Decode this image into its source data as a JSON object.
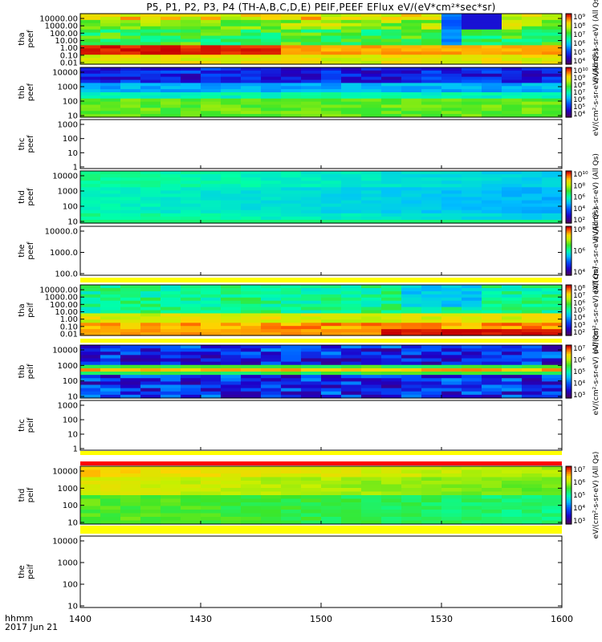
{
  "chart_data": {
    "type": "heatmap",
    "title": "P5, P1, P2, P3, P4 (TH-A,B,C,D,E) PEIF,PEEF EFlux eV/(eV*cm²*sec*sr)",
    "x_axis": {
      "label_lines": [
        "hhmm",
        "2017 Jun 21"
      ],
      "ticks": [
        "1400",
        "1430",
        "1500",
        "1530",
        "1600"
      ],
      "range": [
        "14:00",
        "16:00"
      ]
    },
    "panels": [
      {
        "id": "tha-peef",
        "ylabel": [
          "tha",
          "peef"
        ],
        "yticks": [
          "10000.00",
          "1000.00",
          "100.00",
          "10.00",
          "1.00",
          "0.10",
          "0.01"
        ],
        "ylog": true,
        "has_data": true,
        "pattern": "tha_peef",
        "colorbar": {
          "ticks": [
            "10⁹",
            "10⁸",
            "10⁷",
            "10⁶",
            "10⁵",
            "10⁴"
          ],
          "zlabel": "eV/(cm²-s-sr-eV) (All Qs)"
        }
      },
      {
        "id": "thb-peef",
        "ylabel": [
          "thb",
          "peef"
        ],
        "yticks": [
          "10000",
          "1000",
          "100",
          "10"
        ],
        "ylog": true,
        "has_data": true,
        "pattern": "thb_peef",
        "colorbar": {
          "ticks": [
            "10¹⁰",
            "10⁹",
            "10⁸",
            "10⁷",
            "10⁶",
            "10⁵",
            "10⁴"
          ],
          "zlabel": "eV/(cm²-s-sr-eV) (All Qs)"
        }
      },
      {
        "id": "thc-peef",
        "ylabel": [
          "thc",
          "peef"
        ],
        "yticks": [
          "1000",
          "100",
          "10",
          "1"
        ],
        "ylog": true,
        "has_data": false,
        "pattern": "none",
        "colorbar": null
      },
      {
        "id": "thd-peef",
        "ylabel": [
          "thd",
          "peef"
        ],
        "yticks": [
          "10000",
          "1000",
          "100",
          "10"
        ],
        "ylog": true,
        "has_data": true,
        "pattern": "thd_peef",
        "colorbar": {
          "ticks": [
            "10¹⁰",
            "10⁸",
            "10⁶",
            "10⁴",
            "10²"
          ],
          "zlabel": "eV/(cm²-s-sr-eV) (All Qs)"
        }
      },
      {
        "id": "the-peef",
        "ylabel": [
          "the",
          "peef"
        ],
        "yticks": [
          "10000.0",
          "1000.0",
          "100.0"
        ],
        "ylog": true,
        "has_data": false,
        "pattern": "none",
        "colorbar": {
          "ticks": [
            "10⁸",
            "10⁶",
            "10⁴"
          ],
          "zlabel": "eV/(cm²-s-sr-eV) (All Qs)"
        }
      },
      {
        "id": "tha-peif",
        "ylabel": [
          "tha",
          "peif"
        ],
        "yticks": [
          "10000.00",
          "1000.00",
          "100.00",
          "10.00",
          "1.00",
          "0.10",
          "0.01"
        ],
        "ylog": true,
        "has_data": true,
        "pattern": "tha_peif",
        "colorbar": {
          "ticks": [
            "10⁸",
            "10⁷",
            "10⁶",
            "10⁵",
            "10⁴",
            "10³",
            "10²"
          ],
          "zlabel": "eV/(cm²-s-sr-eV) (All Qs)"
        }
      },
      {
        "id": "thb-peif",
        "ylabel": [
          "thb",
          "peif"
        ],
        "yticks": [
          "10000",
          "1000",
          "100",
          "10"
        ],
        "ylog": true,
        "has_data": true,
        "pattern": "thb_peif",
        "colorbar": {
          "ticks": [
            "10⁷",
            "10⁶",
            "10⁵",
            "10⁴",
            "10³"
          ],
          "zlabel": "eV/(cm²-s-sr-eV) (All Qs)"
        }
      },
      {
        "id": "thc-peif",
        "ylabel": [
          "thc",
          "peif"
        ],
        "yticks": [
          "1000",
          "100",
          "10",
          "1"
        ],
        "ylog": true,
        "has_data": false,
        "pattern": "none",
        "colorbar": null
      },
      {
        "id": "thd-peif",
        "ylabel": [
          "thd",
          "peif"
        ],
        "yticks": [
          "10000",
          "1000",
          "100",
          "10"
        ],
        "ylog": true,
        "has_data": true,
        "pattern": "thd_peif",
        "colorbar": {
          "ticks": [
            "10⁷",
            "10⁶",
            "10⁵",
            "10⁴",
            "10³"
          ],
          "zlabel": "eV/(cm²-s-sr-eV) (All Qs)"
        }
      },
      {
        "id": "the-peif",
        "ylabel": [
          "the",
          "peif"
        ],
        "yticks": [
          "10000",
          "1000",
          "100",
          "10"
        ],
        "ylog": true,
        "has_data": false,
        "pattern": "none",
        "colorbar": null
      }
    ],
    "separator_strips": [
      "yellow",
      "yellow",
      "yellow",
      "red",
      "yellow"
    ],
    "colormap": "rainbow (purple-blue-cyan-green-yellow-red)",
    "grid": false,
    "legend": "none"
  }
}
